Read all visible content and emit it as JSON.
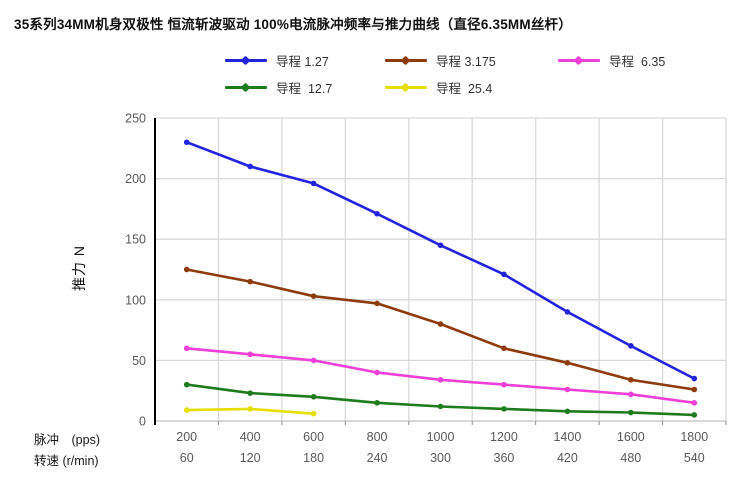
{
  "title": "35系列34MM机身双极性 恒流斩波驱动 100%电流脉冲频率与推力曲线（直径6.35MM丝杆）",
  "axes": {
    "y_title": "推力 N",
    "x_row1_label": "脉冲　(pps)",
    "x_row2_label": "转速 (r/min)"
  },
  "colors": {
    "grid": "#d9d9d9",
    "axis_line": "#000000",
    "bottom_line": "#bfbfbf",
    "tick_mark": "#8c8c8c",
    "tick_label": "#595959",
    "title_text": "#111111"
  },
  "chart_data": {
    "type": "line",
    "title": "35系列34MM机身双极性 恒流斩波驱动 100%电流脉冲频率与推力曲线（直径6.35MM丝杆）",
    "xlabel_row1": "脉冲　(pps)",
    "xlabel_row2": "转速 (r/min)",
    "ylabel": "推力 N",
    "x_row1": [
      200,
      400,
      600,
      800,
      1000,
      1200,
      1400,
      1600,
      1800
    ],
    "x_row2": [
      60,
      120,
      180,
      240,
      300,
      360,
      420,
      480,
      540
    ],
    "ylim": [
      0,
      250
    ],
    "yticks": [
      0,
      50,
      100,
      150,
      200,
      250
    ],
    "grid": true,
    "legend_position": "top",
    "series": [
      {
        "name": "导程 1.27",
        "color": "#2323dd",
        "values": [
          230,
          210,
          196,
          171,
          145,
          121,
          90,
          62,
          35
        ]
      },
      {
        "name": "导程 3.175",
        "color": "#8e3b0c",
        "values": [
          125,
          115,
          103,
          97,
          80,
          60,
          48,
          34,
          26
        ]
      },
      {
        "name": "导程  6.35",
        "color": "#ee3fd6",
        "values": [
          60,
          55,
          50,
          40,
          34,
          30,
          26,
          22,
          15
        ]
      },
      {
        "name": "导程  12.7",
        "color": "#1e7b1e",
        "values": [
          30,
          23,
          20,
          15,
          12,
          10,
          8,
          7,
          5
        ]
      },
      {
        "name": "导程  25.4",
        "color": "#e6e000",
        "values": [
          9,
          10,
          6,
          null,
          null,
          null,
          null,
          null,
          null
        ]
      }
    ]
  }
}
